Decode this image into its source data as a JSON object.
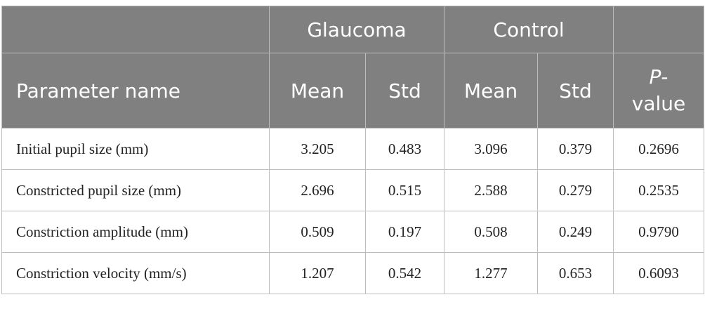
{
  "table": {
    "group_headers": [
      "Glaucoma",
      "Control"
    ],
    "columns": [
      "Parameter name",
      "Mean",
      "Std",
      "Mean",
      "Std"
    ],
    "p_value_header": [
      "P",
      "-value"
    ],
    "rows": [
      [
        "Initial pupil size (mm)",
        "3.205",
        "0.483",
        "3.096",
        "0.379",
        "0.2696"
      ],
      [
        "Constricted pupil size (mm)",
        "2.696",
        "0.515",
        "2.588",
        "0.279",
        "0.2535"
      ],
      [
        "Constriction amplitude (mm)",
        "0.509",
        "0.197",
        "0.508",
        "0.249",
        "0.9790"
      ],
      [
        "Constriction velocity (mm/s)",
        "1.207",
        "0.542",
        "1.277",
        "0.653",
        "0.6093"
      ]
    ]
  }
}
